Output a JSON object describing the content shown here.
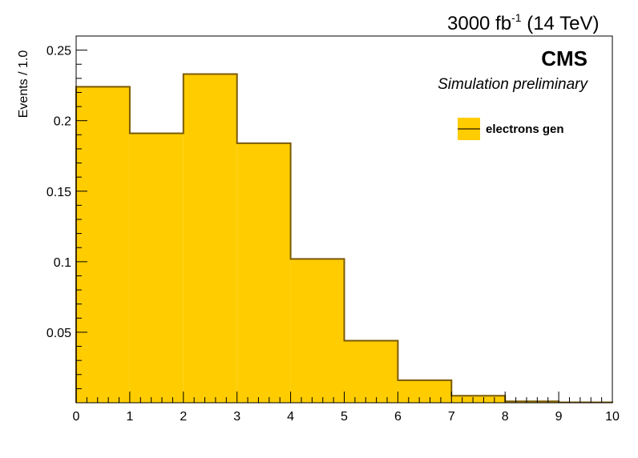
{
  "header": {
    "lumi_value": "3000 fb",
    "lumi_exp": "-1",
    "lumi_energy": "(14 TeV)",
    "cms": "CMS",
    "preliminary": "Simulation preliminary"
  },
  "colors": {
    "fill": "#ffcc00",
    "line": "#7a5a00"
  },
  "chart_data": {
    "type": "bar",
    "bin_edges": [
      0,
      1,
      2,
      3,
      4,
      5,
      6,
      7,
      8,
      9,
      10
    ],
    "series": [
      {
        "name": "electrons gen",
        "values": [
          0.224,
          0.191,
          0.233,
          0.184,
          0.102,
          0.044,
          0.016,
          0.005,
          0.001,
          0.0003
        ]
      }
    ],
    "xlabel": "",
    "ylabel": "Events / 1.0",
    "xlim": [
      0,
      10
    ],
    "ylim": [
      0,
      0.26
    ],
    "xticks": [
      "0",
      "1",
      "2",
      "3",
      "4",
      "5",
      "6",
      "7",
      "8",
      "9",
      "10"
    ],
    "yticks": [
      "0.05",
      "0.1",
      "0.15",
      "0.2",
      "0.25"
    ],
    "grid": false,
    "legend_position": "top-right"
  }
}
